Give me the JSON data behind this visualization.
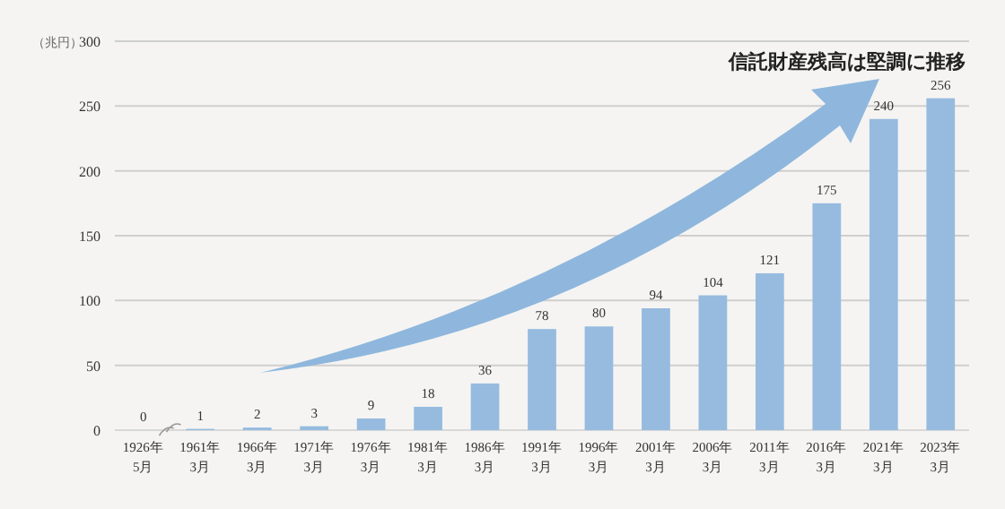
{
  "chart_data": {
    "type": "bar",
    "ylabel": "（兆円）",
    "categories": [
      "1926年\n5月",
      "1961年\n3月",
      "1966年\n3月",
      "1971年\n3月",
      "1976年\n3月",
      "1981年\n3月",
      "1986年\n3月",
      "1991年\n3月",
      "1996年\n3月",
      "2001年\n3月",
      "2006年\n3月",
      "2011年\n3月",
      "2016年\n3月",
      "2021年\n3月",
      "2023年\n3月"
    ],
    "values": [
      0,
      1,
      2,
      3,
      9,
      18,
      36,
      78,
      80,
      94,
      104,
      121,
      175,
      240,
      256
    ],
    "color": "#96bbdf",
    "ylim": [
      0,
      300
    ],
    "yticks": [
      0,
      50,
      100,
      150,
      200,
      250,
      300
    ],
    "grid": "y",
    "data_labels": true,
    "annotations": [
      "信託財産残高は堅調に推移"
    ]
  }
}
